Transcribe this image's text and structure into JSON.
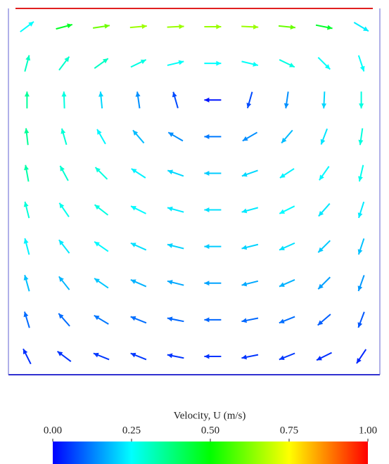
{
  "chart_data": {
    "type": "quiver",
    "x": [
      0.05,
      0.15,
      0.25,
      0.35,
      0.45,
      0.55,
      0.65,
      0.75,
      0.85,
      0.95
    ],
    "y": [
      0.95,
      0.85,
      0.75,
      0.65,
      0.55,
      0.45,
      0.35,
      0.25,
      0.15,
      0.05
    ],
    "u": [
      [
        0.2,
        0.45,
        0.6,
        0.65,
        0.65,
        0.65,
        0.65,
        0.6,
        0.45,
        0.2
      ],
      [
        0.08,
        0.18,
        0.25,
        0.25,
        0.25,
        0.25,
        0.25,
        0.25,
        0.18,
        0.08
      ],
      [
        0,
        -0.01,
        -0.02,
        -0.02,
        -0.02,
        -0.02,
        -0.02,
        -0.02,
        -0.01,
        0
      ],
      [
        -0.04,
        -0.08,
        -0.12,
        -0.12,
        -0.12,
        -0.12,
        -0.12,
        -0.12,
        -0.08,
        -0.04
      ],
      [
        -0.06,
        -0.14,
        -0.2,
        -0.2,
        -0.2,
        -0.2,
        -0.2,
        -0.2,
        -0.14,
        -0.06
      ],
      [
        -0.07,
        -0.15,
        -0.22,
        -0.22,
        -0.22,
        -0.22,
        -0.22,
        -0.22,
        -0.15,
        -0.07
      ],
      [
        -0.06,
        -0.14,
        -0.2,
        -0.2,
        -0.2,
        -0.2,
        -0.2,
        -0.2,
        -0.14,
        -0.06
      ],
      [
        -0.05,
        -0.11,
        -0.16,
        -0.16,
        -0.16,
        -0.16,
        -0.16,
        -0.16,
        -0.11,
        -0.05
      ],
      [
        -0.03,
        -0.07,
        -0.1,
        -0.1,
        -0.1,
        -0.1,
        -0.1,
        -0.1,
        -0.07,
        -0.03
      ],
      [
        -0.02,
        -0.04,
        -0.05,
        -0.05,
        -0.05,
        -0.05,
        -0.05,
        -0.05,
        -0.04,
        -0.02
      ]
    ],
    "v": [
      [
        0.15,
        0.12,
        0.09,
        0.06,
        0.03,
        0,
        -0.03,
        -0.06,
        -0.09,
        -0.12
      ],
      [
        0.3,
        0.24,
        0.18,
        0.12,
        0.06,
        0,
        -0.06,
        -0.12,
        -0.18,
        -0.24
      ],
      [
        0.35,
        0.28,
        0.21,
        0.14,
        0.07,
        0,
        -0.07,
        -0.14,
        -0.21,
        -0.28
      ],
      [
        0.35,
        0.28,
        0.21,
        0.14,
        0.07,
        0,
        -0.07,
        -0.14,
        -0.21,
        -0.28
      ],
      [
        0.33,
        0.26,
        0.2,
        0.13,
        0.07,
        0,
        -0.07,
        -0.13,
        -0.2,
        -0.26
      ],
      [
        0.28,
        0.22,
        0.17,
        0.11,
        0.06,
        0,
        -0.06,
        -0.11,
        -0.17,
        -0.22
      ],
      [
        0.23,
        0.18,
        0.14,
        0.09,
        0.05,
        0,
        -0.05,
        -0.09,
        -0.14,
        -0.18
      ],
      [
        0.18,
        0.14,
        0.11,
        0.07,
        0.04,
        0,
        -0.04,
        -0.07,
        -0.11,
        -0.14
      ],
      [
        0.1,
        0.08,
        0.06,
        0.04,
        0.02,
        0,
        -0.02,
        -0.04,
        -0.06,
        -0.08
      ],
      [
        0.04,
        0.03,
        0.02,
        0.02,
        0.01,
        0,
        -0.01,
        -0.02,
        -0.02,
        -0.03
      ]
    ],
    "xlim": [
      0,
      1
    ],
    "ylim": [
      0,
      1
    ],
    "colorbar_label": "Velocity, U (m/s)",
    "clim": [
      0,
      1
    ],
    "colorbar_ticks": [
      {
        "value": 0,
        "label": "0.00"
      },
      {
        "value": 0.25,
        "label": "0.25"
      },
      {
        "value": 0.5,
        "label": "0.50"
      },
      {
        "value": 0.75,
        "label": "0.75"
      },
      {
        "value": 1,
        "label": "1.00"
      }
    ],
    "colormap": [
      "#0000ff",
      "#00ffff",
      "#00ff00",
      "#ffff00",
      "#ff0000"
    ]
  }
}
